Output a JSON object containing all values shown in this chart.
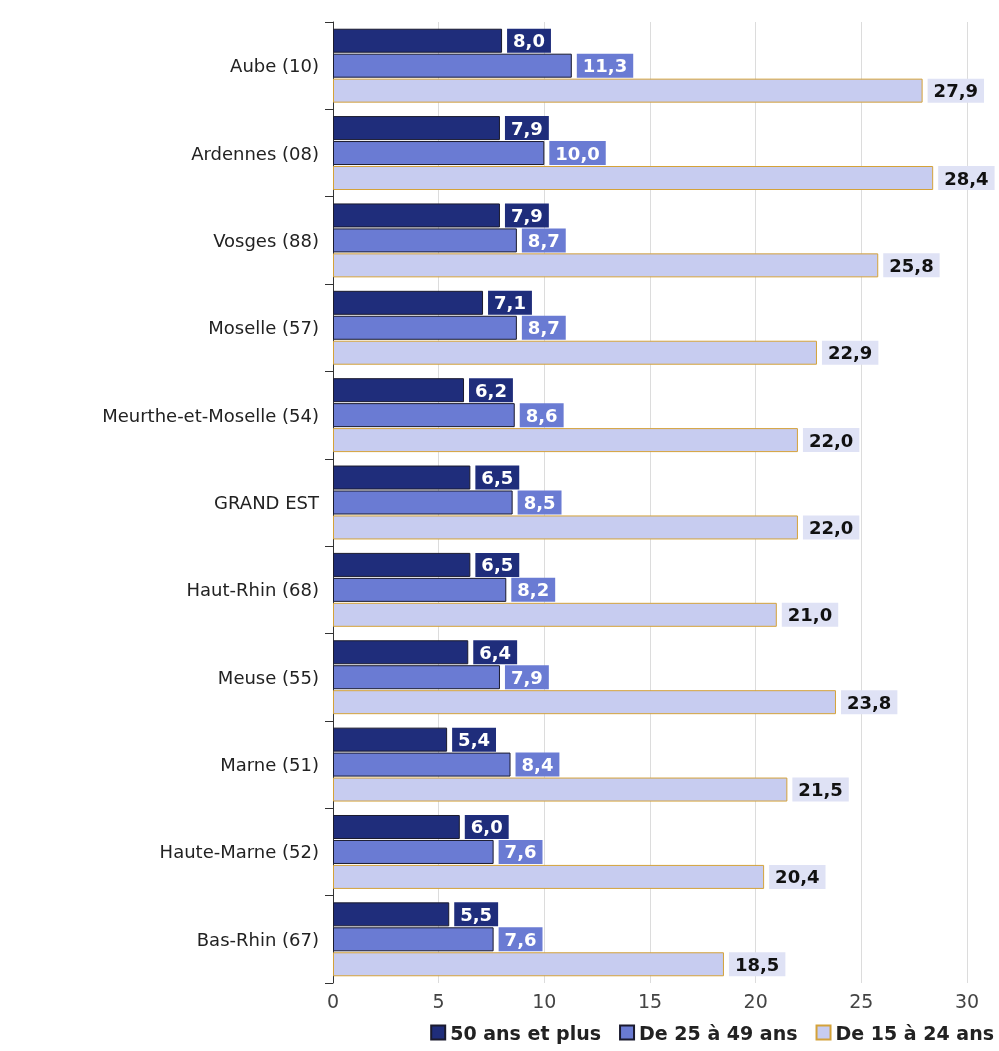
{
  "chart_data": {
    "type": "bar",
    "orientation": "horizontal",
    "categories": [
      "Aube (10)",
      "Ardennes (08)",
      "Vosges (88)",
      "Moselle (57)",
      "Meurthe-et-Moselle (54)",
      "GRAND EST",
      "Haut-Rhin (68)",
      "Meuse (55)",
      "Marne (51)",
      "Haute-Marne (52)",
      "Bas-Rhin (67)"
    ],
    "series": [
      {
        "name": "50 ans et plus",
        "color": "#1f2d7b",
        "values": [
          8.0,
          7.9,
          7.9,
          7.1,
          6.2,
          6.5,
          6.5,
          6.4,
          5.4,
          6.0,
          5.5
        ],
        "value_labels": [
          "8,0",
          "7,9",
          "7,9",
          "7,1",
          "6,2",
          "6,5",
          "6,5",
          "6,4",
          "5,4",
          "6,0",
          "5,5"
        ]
      },
      {
        "name": "De 25 à 49 ans",
        "color": "#6a7bd3",
        "values": [
          11.3,
          10.0,
          8.7,
          8.7,
          8.6,
          8.5,
          8.2,
          7.9,
          8.4,
          7.6,
          7.6
        ],
        "value_labels": [
          "11,3",
          "10,0",
          "8,7",
          "8,7",
          "8,6",
          "8,5",
          "8,2",
          "7,9",
          "8,4",
          "7,6",
          "7,6"
        ]
      },
      {
        "name": "De 15 à 24 ans",
        "color": "#c7ccf0",
        "values": [
          27.9,
          28.4,
          25.8,
          22.9,
          22.0,
          22.0,
          21.0,
          23.8,
          21.5,
          20.4,
          18.5
        ],
        "value_labels": [
          "27,9",
          "28,4",
          "25,8",
          "22,9",
          "22,0",
          "22,0",
          "21,0",
          "23,8",
          "21,5",
          "20,4",
          "18,5"
        ]
      }
    ],
    "xlim": [
      0,
      30
    ],
    "xticks": [
      0,
      5,
      10,
      15,
      20,
      25,
      30
    ],
    "grid": "x",
    "legend": "bottom"
  }
}
